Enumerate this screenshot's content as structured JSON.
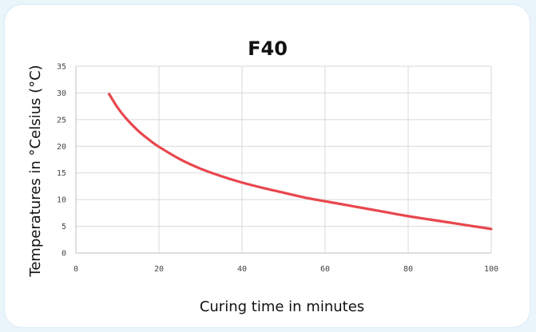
{
  "chart_data": {
    "type": "line",
    "title": "F40",
    "xlabel": "Curing time in minutes",
    "ylabel": "Temperatures in °Celsius (°C)",
    "xlim": [
      0,
      100
    ],
    "ylim": [
      0,
      35
    ],
    "x_ticks": [
      "0",
      "20",
      "40",
      "60",
      "80",
      "100"
    ],
    "y_ticks": [
      "0",
      "5",
      "10",
      "15",
      "20",
      "25",
      "30",
      "35"
    ],
    "grid": true,
    "legend": "none",
    "series": [
      {
        "color": "#e8474d",
        "x": [
          8,
          10,
          12,
          15,
          18,
          20,
          25,
          30,
          35,
          40,
          45,
          50,
          55,
          60,
          65,
          70,
          75,
          80,
          85,
          90,
          95,
          100
        ],
        "y": [
          29.8,
          27.3,
          25.3,
          22.9,
          21.0,
          19.9,
          17.6,
          15.8,
          14.4,
          13.2,
          12.2,
          11.3,
          10.4,
          9.7,
          9.0,
          8.3,
          7.6,
          6.9,
          6.3,
          5.7,
          5.1,
          4.5
        ]
      }
    ]
  }
}
